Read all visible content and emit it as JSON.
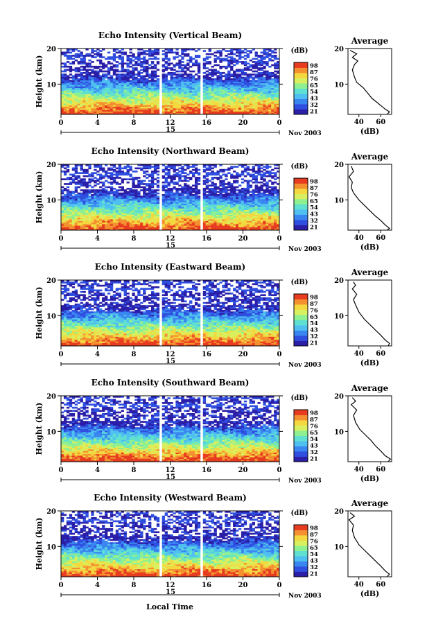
{
  "figure": {
    "xlabel": "Local Time",
    "date_label": "Nov 2003",
    "day_label": "15",
    "avg_title": "Average",
    "avg_xlabel": "(dB)",
    "colorbar_label": "(dB)"
  },
  "colors": {
    "colormap": [
      "#2b1fa8",
      "#2f4fe0",
      "#3a86f0",
      "#4fc0f0",
      "#5fe0d0",
      "#8ef090",
      "#d8f060",
      "#f4d840",
      "#f49030",
      "#e83c20"
    ]
  },
  "chart_data": [
    {
      "type": "heatmap",
      "title": "Echo Intensity (Vertical Beam)",
      "ylabel": "Height (km)",
      "xlabel": "Local Time",
      "xticks": [
        "0",
        "4",
        "8",
        "12",
        "16",
        "20",
        "0"
      ],
      "x_values": [
        0,
        4,
        8,
        12,
        16,
        20,
        24
      ],
      "xlim": [
        0,
        24
      ],
      "yticks": [
        "10",
        "20"
      ],
      "y_values": [
        10,
        20
      ],
      "ylim": [
        1.5,
        20
      ],
      "data_gaps_hours": [
        [
          10.8,
          11.1
        ],
        [
          15.3,
          15.7
        ]
      ],
      "colorbar": {
        "label": "(dB)",
        "ticks": [
          "21",
          "32",
          "43",
          "54",
          "65",
          "76",
          "87",
          "98"
        ],
        "range": [
          21,
          98
        ]
      },
      "average_profile": {
        "title": "Average",
        "xlabel": "(dB)",
        "xticks": [
          "40",
          "60"
        ],
        "x_values": [
          40,
          60
        ],
        "xlim": [
          30,
          70
        ],
        "yticks": [
          "10",
          "20"
        ],
        "ylim": [
          1.5,
          20
        ],
        "points": [
          [
            32,
            19.5
          ],
          [
            38,
            18.5
          ],
          [
            34,
            17.5
          ],
          [
            39,
            16.5
          ],
          [
            36,
            15.5
          ],
          [
            34,
            14
          ],
          [
            36,
            12
          ],
          [
            38,
            10.5
          ],
          [
            44,
            9
          ],
          [
            48,
            7.5
          ],
          [
            52,
            6
          ],
          [
            56,
            5
          ],
          [
            60,
            4
          ],
          [
            64,
            3
          ],
          [
            68,
            2.2
          ],
          [
            66,
            1.6
          ]
        ]
      }
    },
    {
      "type": "heatmap",
      "title": "Echo Intensity (Northward Beam)",
      "ylabel": "Height (km)",
      "xlabel": "Local Time",
      "xticks": [
        "0",
        "4",
        "8",
        "12",
        "16",
        "20",
        "0"
      ],
      "x_values": [
        0,
        4,
        8,
        12,
        16,
        20,
        24
      ],
      "xlim": [
        0,
        24
      ],
      "yticks": [
        "10",
        "20"
      ],
      "y_values": [
        10,
        20
      ],
      "ylim": [
        1.5,
        20
      ],
      "data_gaps_hours": [
        [
          10.8,
          11.1
        ],
        [
          15.3,
          15.7
        ]
      ],
      "colorbar": {
        "label": "(dB)",
        "ticks": [
          "21",
          "32",
          "43",
          "54",
          "65",
          "76",
          "87",
          "98"
        ],
        "range": [
          21,
          98
        ]
      },
      "average_profile": {
        "title": "Average",
        "xlabel": "(dB)",
        "xticks": [
          "40",
          "60"
        ],
        "x_values": [
          40,
          60
        ],
        "xlim": [
          30,
          70
        ],
        "yticks": [
          "10",
          "20"
        ],
        "ylim": [
          1.5,
          20
        ],
        "points": [
          [
            33,
            19.5
          ],
          [
            35,
            18
          ],
          [
            31,
            16.5
          ],
          [
            34,
            15
          ],
          [
            33,
            13.5
          ],
          [
            35,
            12
          ],
          [
            40,
            10
          ],
          [
            45,
            8.5
          ],
          [
            50,
            7
          ],
          [
            55,
            5.5
          ],
          [
            60,
            4.2
          ],
          [
            64,
            3
          ],
          [
            68,
            2
          ],
          [
            66,
            1.6
          ]
        ]
      }
    },
    {
      "type": "heatmap",
      "title": "Echo Intensity (Eastward Beam)",
      "ylabel": "Height (km)",
      "xlabel": "Local Time",
      "xticks": [
        "0",
        "4",
        "8",
        "12",
        "16",
        "20",
        "0"
      ],
      "x_values": [
        0,
        4,
        8,
        12,
        16,
        20,
        24
      ],
      "xlim": [
        0,
        24
      ],
      "yticks": [
        "10",
        "20"
      ],
      "y_values": [
        10,
        20
      ],
      "ylim": [
        1.5,
        20
      ],
      "data_gaps_hours": [
        [
          10.8,
          11.1
        ],
        [
          15.3,
          15.7
        ]
      ],
      "colorbar": {
        "label": "(dB)",
        "ticks": [
          "21",
          "32",
          "43",
          "54",
          "65",
          "76",
          "87",
          "98"
        ],
        "range": [
          21,
          98
        ]
      },
      "average_profile": {
        "title": "Average",
        "xlabel": "(dB)",
        "xticks": [
          "40",
          "60"
        ],
        "x_values": [
          40,
          60
        ],
        "xlim": [
          30,
          70
        ],
        "yticks": [
          "10",
          "20"
        ],
        "ylim": [
          1.5,
          20
        ],
        "points": [
          [
            35,
            19.5
          ],
          [
            37,
            18.5
          ],
          [
            34,
            17.5
          ],
          [
            38,
            16
          ],
          [
            35,
            14.5
          ],
          [
            37,
            13
          ],
          [
            40,
            11
          ],
          [
            45,
            9
          ],
          [
            50,
            7.5
          ],
          [
            55,
            6
          ],
          [
            60,
            4.5
          ],
          [
            64,
            3.2
          ],
          [
            68,
            2.2
          ],
          [
            67,
            1.6
          ]
        ]
      }
    },
    {
      "type": "heatmap",
      "title": "Echo Intensity (Southward Beam)",
      "ylabel": "Height (km)",
      "xlabel": "Local Time",
      "xticks": [
        "0",
        "4",
        "8",
        "12",
        "16",
        "20",
        "0"
      ],
      "x_values": [
        0,
        4,
        8,
        12,
        16,
        20,
        24
      ],
      "xlim": [
        0,
        24
      ],
      "yticks": [
        "10",
        "20"
      ],
      "y_values": [
        10,
        20
      ],
      "ylim": [
        1.5,
        20
      ],
      "data_gaps_hours": [
        [
          10.8,
          11.1
        ],
        [
          15.3,
          15.7
        ]
      ],
      "colorbar": {
        "label": "(dB)",
        "ticks": [
          "21",
          "32",
          "43",
          "54",
          "65",
          "76",
          "87",
          "98"
        ],
        "range": [
          21,
          98
        ]
      },
      "average_profile": {
        "title": "Average",
        "xlabel": "(dB)",
        "xticks": [
          "40",
          "60"
        ],
        "x_values": [
          40,
          60
        ],
        "xlim": [
          30,
          70
        ],
        "yticks": [
          "10",
          "20"
        ],
        "ylim": [
          1.5,
          20
        ],
        "points": [
          [
            34,
            19.5
          ],
          [
            37,
            18.5
          ],
          [
            33,
            17.5
          ],
          [
            38,
            16
          ],
          [
            35,
            14.5
          ],
          [
            37,
            12.5
          ],
          [
            41,
            10.5
          ],
          [
            46,
            9
          ],
          [
            51,
            7.5
          ],
          [
            55,
            6
          ],
          [
            60,
            4.5
          ],
          [
            64,
            3.2
          ],
          [
            69,
            2.2
          ],
          [
            67,
            1.6
          ]
        ]
      }
    },
    {
      "type": "heatmap",
      "title": "Echo Intensity (Westward Beam)",
      "ylabel": "Height (km)",
      "xlabel": "Local Time",
      "xticks": [
        "0",
        "4",
        "8",
        "12",
        "16",
        "20",
        "0"
      ],
      "x_values": [
        0,
        4,
        8,
        12,
        16,
        20,
        24
      ],
      "xlim": [
        0,
        24
      ],
      "yticks": [
        "10",
        "20"
      ],
      "y_values": [
        10,
        20
      ],
      "ylim": [
        1.5,
        20
      ],
      "data_gaps_hours": [
        [
          10.8,
          11.1
        ],
        [
          15.3,
          15.7
        ]
      ],
      "colorbar": {
        "label": "(dB)",
        "ticks": [
          "21",
          "32",
          "43",
          "54",
          "65",
          "76",
          "87",
          "98"
        ],
        "range": [
          21,
          98
        ]
      },
      "average_profile": {
        "title": "Average",
        "xlabel": "(dB)",
        "xticks": [
          "40",
          "60"
        ],
        "x_values": [
          40,
          60
        ],
        "xlim": [
          30,
          70
        ],
        "yticks": [
          "10",
          "20"
        ],
        "ylim": [
          1.5,
          20
        ],
        "points": [
          [
            32,
            19.5
          ],
          [
            36,
            18.5
          ],
          [
            31,
            17.5
          ],
          [
            35,
            16
          ],
          [
            34,
            14.5
          ],
          [
            36,
            12.5
          ],
          [
            40,
            10.5
          ],
          [
            45,
            9
          ],
          [
            50,
            7.5
          ],
          [
            55,
            6
          ],
          [
            60,
            4.5
          ],
          [
            64,
            3.2
          ],
          [
            68,
            2.2
          ],
          [
            66,
            1.6
          ]
        ]
      }
    }
  ]
}
